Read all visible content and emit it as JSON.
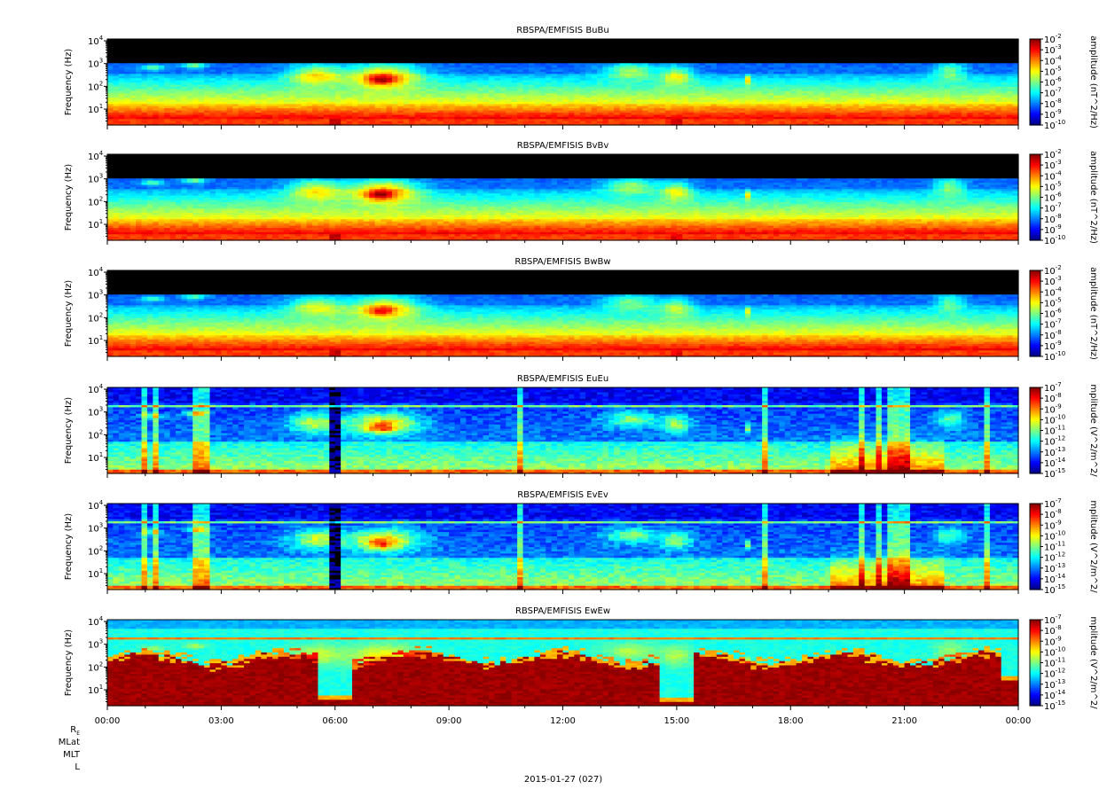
{
  "chart_data": {
    "type": "heatmap",
    "date_label": "2015-01-27 (027)",
    "x_ticks": [
      "00:00",
      "03:00",
      "06:00",
      "09:00",
      "12:00",
      "15:00",
      "18:00",
      "21:00",
      "00:00"
    ],
    "ephemeris_labels": [
      "R_E",
      "MLat",
      "MLT",
      "L"
    ],
    "y_scale": "log",
    "y_range_hz": [
      2,
      12000
    ],
    "y_tick_exponents": [
      "1",
      "2",
      "3",
      "4"
    ],
    "panels": [
      {
        "title": "RBSPA/EMFISIS  BuBu",
        "ylabel": "Frequency (Hz)",
        "cbar_label": "amplitude (nT^2/Hz)",
        "cbar_exps": [
          "-2",
          "-3",
          "-4",
          "-5",
          "-6",
          "-7",
          "-8",
          "-9",
          "-10"
        ],
        "kind": "B",
        "wave_scale": 1.0
      },
      {
        "title": "RBSPA/EMFISIS  BvBv",
        "ylabel": "Frequency (Hz)",
        "cbar_label": "amplitude (nT^2/Hz)",
        "cbar_exps": [
          "-2",
          "-3",
          "-4",
          "-5",
          "-6",
          "-7",
          "-8",
          "-9",
          "-10"
        ],
        "kind": "B",
        "wave_scale": 1.0
      },
      {
        "title": "RBSPA/EMFISIS  BwBw",
        "ylabel": "Frequency (Hz)",
        "cbar_label": "amplitude (nT^2/Hz)",
        "cbar_exps": [
          "-2",
          "-3",
          "-4",
          "-5",
          "-6",
          "-7",
          "-8",
          "-9",
          "-10"
        ],
        "kind": "B",
        "wave_scale": 0.85
      },
      {
        "title": "RBSPA/EMFISIS  EuEu",
        "ylabel": "Frequency (Hz)",
        "cbar_label": "mplitude (V^2/m^2/",
        "cbar_exps": [
          "-7",
          "-8",
          "-9",
          "-10",
          "-11",
          "-12",
          "-13",
          "-14",
          "-15"
        ],
        "kind": "E",
        "wave_scale": 1.0
      },
      {
        "title": "RBSPA/EMFISIS  EvEv",
        "ylabel": "Frequency (Hz)",
        "cbar_label": "mplitude (V^2/m^2/",
        "cbar_exps": [
          "-7",
          "-8",
          "-9",
          "-10",
          "-11",
          "-12",
          "-13",
          "-14",
          "-15"
        ],
        "kind": "E",
        "wave_scale": 1.0
      },
      {
        "title": "RBSPA/EMFISIS  EwEw",
        "ylabel": "Frequency (Hz)",
        "cbar_label": "mplitude (V^2/m^2/",
        "cbar_exps": [
          "-7",
          "-8",
          "-9",
          "-10",
          "-11",
          "-12",
          "-13",
          "-14",
          "-15"
        ],
        "kind": "Ew",
        "wave_scale": 1.0
      }
    ]
  }
}
